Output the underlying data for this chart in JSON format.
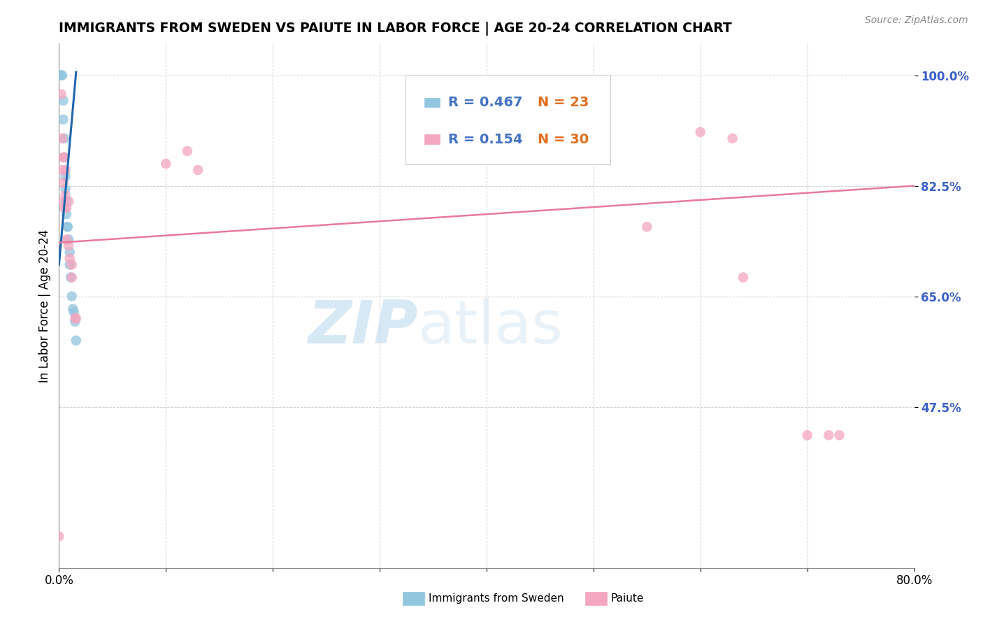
{
  "title": "IMMIGRANTS FROM SWEDEN VS PAIUTE IN LABOR FORCE | AGE 20-24 CORRELATION CHART",
  "source": "Source: ZipAtlas.com",
  "ylabel": "In Labor Force | Age 20-24",
  "yticks": [
    0.475,
    0.65,
    0.825,
    1.0
  ],
  "ytick_labels": [
    "47.5%",
    "65.0%",
    "82.5%",
    "100.0%"
  ],
  "xmin": 0.0,
  "xmax": 0.8,
  "ymin": 0.22,
  "ymax": 1.05,
  "watermark_zip": "ZIP",
  "watermark_atlas": "atlas",
  "legend_blue_r": "R = 0.467",
  "legend_blue_n": "N = 23",
  "legend_pink_r": "R = 0.154",
  "legend_pink_n": "N = 30",
  "sweden_x": [
    0.0,
    0.0,
    0.002,
    0.003,
    0.004,
    0.004,
    0.005,
    0.005,
    0.006,
    0.006,
    0.007,
    0.007,
    0.008,
    0.008,
    0.009,
    0.01,
    0.01,
    0.011,
    0.012,
    0.013,
    0.014,
    0.015,
    0.016
  ],
  "sweden_y": [
    1.0,
    1.0,
    1.0,
    1.0,
    0.96,
    0.93,
    0.9,
    0.87,
    0.84,
    0.82,
    0.8,
    0.78,
    0.76,
    0.76,
    0.74,
    0.72,
    0.7,
    0.68,
    0.65,
    0.63,
    0.625,
    0.61,
    0.58
  ],
  "paiute_x": [
    0.0,
    0.002,
    0.003,
    0.003,
    0.004,
    0.004,
    0.004,
    0.005,
    0.005,
    0.006,
    0.006,
    0.007,
    0.007,
    0.009,
    0.009,
    0.01,
    0.012,
    0.012,
    0.015,
    0.016,
    0.1,
    0.12,
    0.13,
    0.55,
    0.6,
    0.63,
    0.64,
    0.7,
    0.72,
    0.73
  ],
  "paiute_y": [
    0.27,
    0.97,
    0.9,
    0.85,
    0.87,
    0.83,
    0.8,
    0.87,
    0.79,
    0.85,
    0.81,
    0.79,
    0.74,
    0.8,
    0.73,
    0.71,
    0.7,
    0.68,
    0.615,
    0.615,
    0.86,
    0.88,
    0.85,
    0.76,
    0.91,
    0.9,
    0.68,
    0.43,
    0.43,
    0.43
  ],
  "blue_line_x": [
    0.0,
    0.016
  ],
  "blue_line_y": [
    0.7,
    1.005
  ],
  "pink_line_x": [
    0.0,
    0.8
  ],
  "pink_line_y": [
    0.735,
    0.825
  ],
  "blue_color": "#92c5de",
  "pink_color": "#f4a6c0",
  "blue_line_color": "#2166ac",
  "pink_line_color": "#e87a9a",
  "ytick_color": "#3a5fc8",
  "xtick_color": "#000000",
  "title_fontsize": 13.5,
  "axis_label_fontsize": 12,
  "tick_fontsize": 12,
  "legend_fontsize": 14,
  "marker_size": 110,
  "legend_r_color": "#4472c4",
  "legend_n_color": "#e07020"
}
